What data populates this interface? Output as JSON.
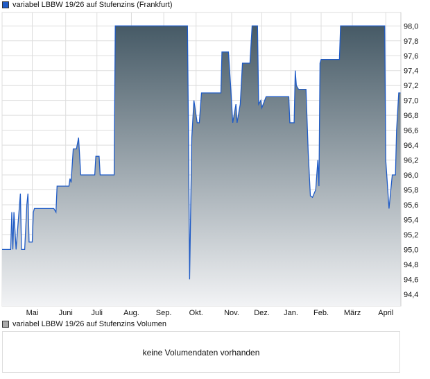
{
  "chart_data": {
    "type": "area",
    "title": "variabel LBBW 19/26 auf Stufenzins (Frankfurt)",
    "legend": "top-left",
    "line_color": "#1f5bc6",
    "fill_top_color": "#465a66",
    "fill_bottom_color": "#f2f3f5",
    "ylim": [
      94.24,
      98.18
    ],
    "xlim": [
      0,
      370
    ],
    "yticks": [
      94.4,
      94.6,
      94.8,
      95.0,
      95.2,
      95.4,
      95.6,
      95.8,
      96.0,
      96.2,
      96.4,
      96.6,
      96.8,
      97.0,
      97.2,
      97.4,
      97.6,
      97.8,
      98.0
    ],
    "ytick_labels": [
      "94,4",
      "94,6",
      "94,8",
      "95,0",
      "95,2",
      "95,4",
      "95,6",
      "95,8",
      "96,0",
      "96,2",
      "96,4",
      "96,6",
      "96,8",
      "97,0",
      "97,2",
      "97,4",
      "97,6",
      "97,8",
      "98,0"
    ],
    "xticks": [
      {
        "day": 28,
        "label": "Mai"
      },
      {
        "day": 59,
        "label": "Juni"
      },
      {
        "day": 88,
        "label": "Juli"
      },
      {
        "day": 120,
        "label": "Aug."
      },
      {
        "day": 150,
        "label": "Sep."
      },
      {
        "day": 180,
        "label": "Okt."
      },
      {
        "day": 213,
        "label": "Nov."
      },
      {
        "day": 241,
        "label": "Dez."
      },
      {
        "day": 268,
        "label": "Jan."
      },
      {
        "day": 296,
        "label": "Feb."
      },
      {
        "day": 325,
        "label": "März"
      },
      {
        "day": 356,
        "label": "April"
      }
    ],
    "points": [
      [
        0,
        95.0
      ],
      [
        8,
        95.0
      ],
      [
        9,
        95.5
      ],
      [
        10,
        95.0
      ],
      [
        11,
        95.5
      ],
      [
        13,
        95.0
      ],
      [
        14,
        95.2
      ],
      [
        17,
        95.75
      ],
      [
        18,
        95.0
      ],
      [
        21,
        95.0
      ],
      [
        23,
        95.6
      ],
      [
        24,
        95.75
      ],
      [
        25,
        95.1
      ],
      [
        28,
        95.1
      ],
      [
        29,
        95.5
      ],
      [
        30,
        95.55
      ],
      [
        48,
        95.55
      ],
      [
        50,
        95.5
      ],
      [
        51,
        95.85
      ],
      [
        62,
        95.85
      ],
      [
        63,
        95.95
      ],
      [
        64,
        95.9
      ],
      [
        66,
        96.35
      ],
      [
        69,
        96.35
      ],
      [
        71,
        96.5
      ],
      [
        73,
        96.0
      ],
      [
        86,
        96.0
      ],
      [
        87,
        96.25
      ],
      [
        90,
        96.25
      ],
      [
        91,
        96.0
      ],
      [
        104,
        96.0
      ],
      [
        105,
        98.0
      ],
      [
        172,
        98.0
      ],
      [
        173,
        96.4
      ],
      [
        174,
        94.6
      ],
      [
        176,
        96.5
      ],
      [
        178,
        97.0
      ],
      [
        181,
        96.7
      ],
      [
        183,
        96.7
      ],
      [
        185,
        97.1
      ],
      [
        203,
        97.1
      ],
      [
        204,
        97.65
      ],
      [
        210,
        97.65
      ],
      [
        212,
        97.2
      ],
      [
        214,
        96.7
      ],
      [
        217,
        96.95
      ],
      [
        218,
        96.7
      ],
      [
        221,
        96.95
      ],
      [
        223,
        97.5
      ],
      [
        230,
        97.5
      ],
      [
        232,
        98.0
      ],
      [
        237,
        98.0
      ],
      [
        238,
        96.95
      ],
      [
        240,
        97.0
      ],
      [
        241,
        96.9
      ],
      [
        245,
        97.05
      ],
      [
        266,
        97.05
      ],
      [
        267,
        96.7
      ],
      [
        271,
        96.7
      ],
      [
        272,
        97.4
      ],
      [
        273,
        97.2
      ],
      [
        275,
        97.15
      ],
      [
        282,
        97.15
      ],
      [
        284,
        96.3
      ],
      [
        286,
        95.72
      ],
      [
        288,
        95.7
      ],
      [
        291,
        95.8
      ],
      [
        293,
        96.2
      ],
      [
        294,
        95.85
      ],
      [
        295,
        97.5
      ],
      [
        296,
        97.55
      ],
      [
        313,
        97.55
      ],
      [
        314,
        98.0
      ],
      [
        355,
        98.0
      ],
      [
        356,
        96.2
      ],
      [
        359,
        95.55
      ],
      [
        362,
        96.0
      ],
      [
        365,
        96.0
      ],
      [
        366,
        96.6
      ],
      [
        368,
        97.1
      ],
      [
        370,
        97.1
      ]
    ]
  },
  "volume": {
    "legend": "variabel LBBW 19/26 auf Stufenzins Volumen",
    "empty_text": "keine Volumendaten vorhanden"
  }
}
